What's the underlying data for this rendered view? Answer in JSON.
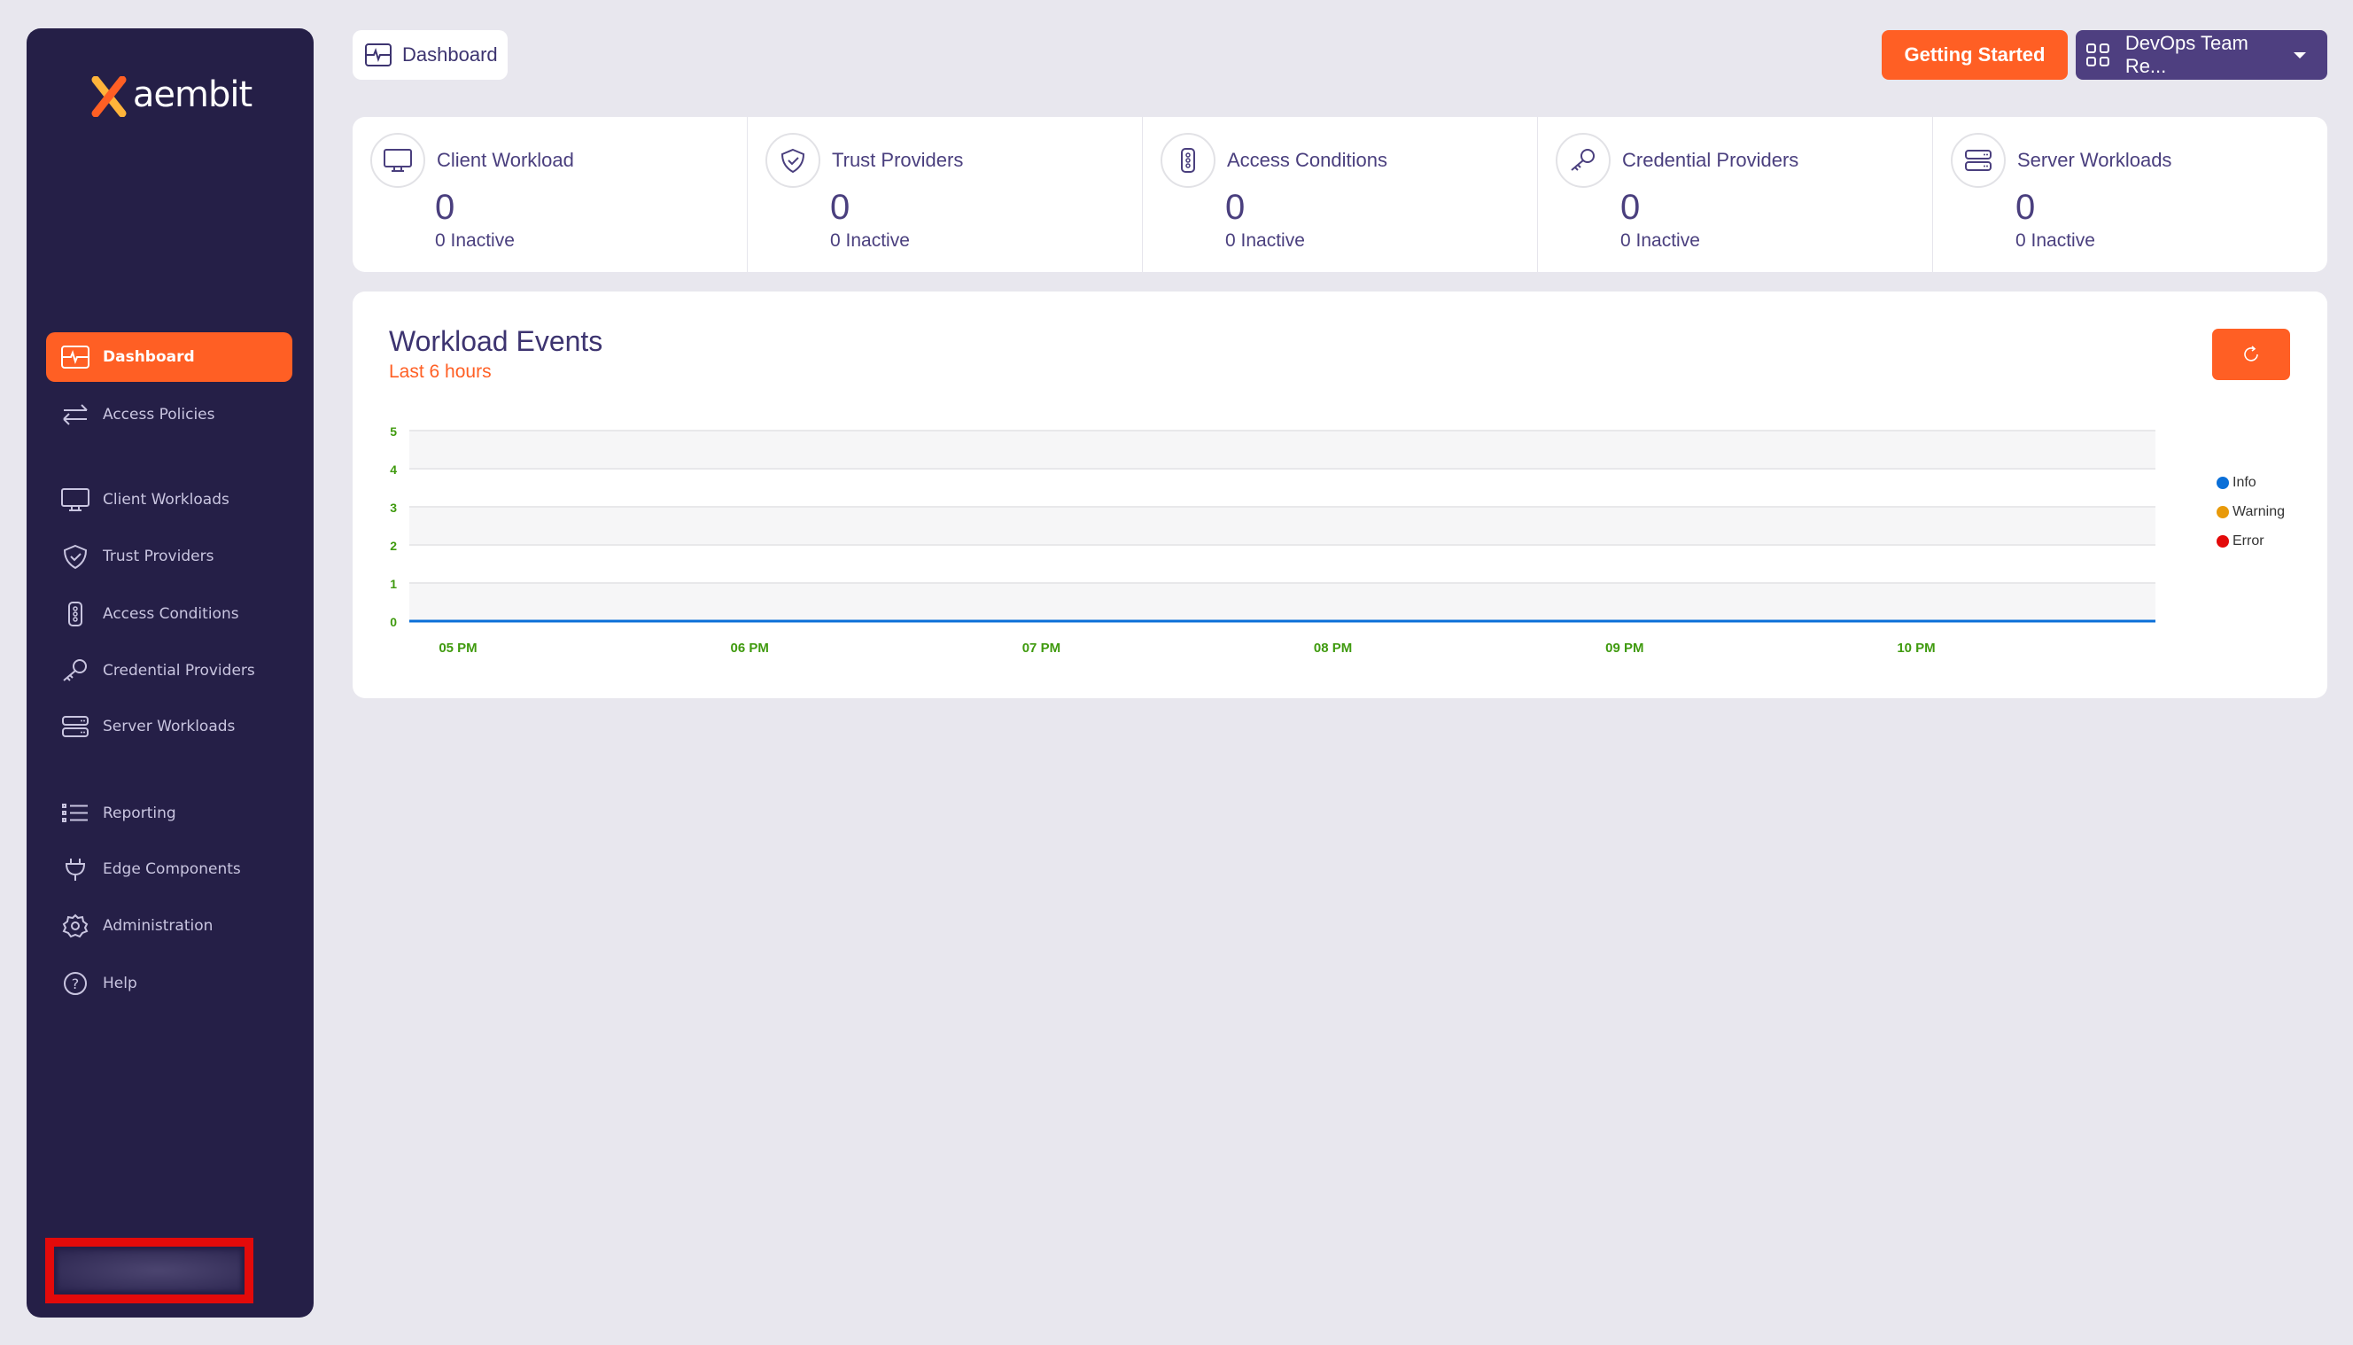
{
  "brand": {
    "name": "aembit"
  },
  "sidebar": {
    "items": [
      {
        "label": "Dashboard",
        "icon": "dashboard-icon",
        "active": true
      },
      {
        "label": "Access Policies",
        "icon": "arrows-icon"
      },
      {
        "label": "Client Workloads",
        "icon": "monitor-icon"
      },
      {
        "label": "Trust Providers",
        "icon": "shield-icon"
      },
      {
        "label": "Access Conditions",
        "icon": "traffic-light-icon"
      },
      {
        "label": "Credential Providers",
        "icon": "key-icon"
      },
      {
        "label": "Server Workloads",
        "icon": "server-icon"
      },
      {
        "label": "Reporting",
        "icon": "list-icon"
      },
      {
        "label": "Edge Components",
        "icon": "plug-icon"
      },
      {
        "label": "Administration",
        "icon": "gear-icon"
      },
      {
        "label": "Help",
        "icon": "help-icon"
      }
    ]
  },
  "header": {
    "breadcrumb": "Dashboard",
    "getting_started": "Getting Started",
    "team": "DevOps Team Re..."
  },
  "stats": [
    {
      "title": "Client Workload",
      "count": "0",
      "inactive": "0 Inactive"
    },
    {
      "title": "Trust Providers",
      "count": "0",
      "inactive": "0 Inactive"
    },
    {
      "title": "Access Conditions",
      "count": "0",
      "inactive": "0 Inactive"
    },
    {
      "title": "Credential Providers",
      "count": "0",
      "inactive": "0 Inactive"
    },
    {
      "title": "Server Workloads",
      "count": "0",
      "inactive": "0 Inactive"
    }
  ],
  "events": {
    "title": "Workload Events",
    "subtitle": "Last 6 hours"
  },
  "colors": {
    "accent": "#ff5f24",
    "sidebar": "#251f47",
    "purple": "#4e3f80",
    "tick": "#3f9a0e"
  },
  "chart_data": {
    "type": "line",
    "title": "Workload Events",
    "xlabel": "",
    "ylabel": "",
    "ylim": [
      0,
      5
    ],
    "yticks": [
      "0",
      "1",
      "2",
      "3",
      "4",
      "5"
    ],
    "xticks": [
      "05 PM",
      "06 PM",
      "07 PM",
      "08 PM",
      "09 PM",
      "10 PM"
    ],
    "grid": true,
    "legend_position": "right",
    "legend": [
      {
        "name": "Info",
        "color": "#0a6fd8"
      },
      {
        "name": "Warning",
        "color": "#e89a0a"
      },
      {
        "name": "Error",
        "color": "#e30a0a"
      }
    ],
    "series": [
      {
        "name": "Info",
        "color": "#0a6fd8",
        "x": [
          "04:50 PM",
          "05:50 PM",
          "06:50 PM",
          "07:50 PM",
          "08:50 PM",
          "09:50 PM",
          "10:50 PM"
        ],
        "values": [
          0,
          0,
          0,
          0,
          0,
          0,
          0
        ]
      }
    ]
  }
}
